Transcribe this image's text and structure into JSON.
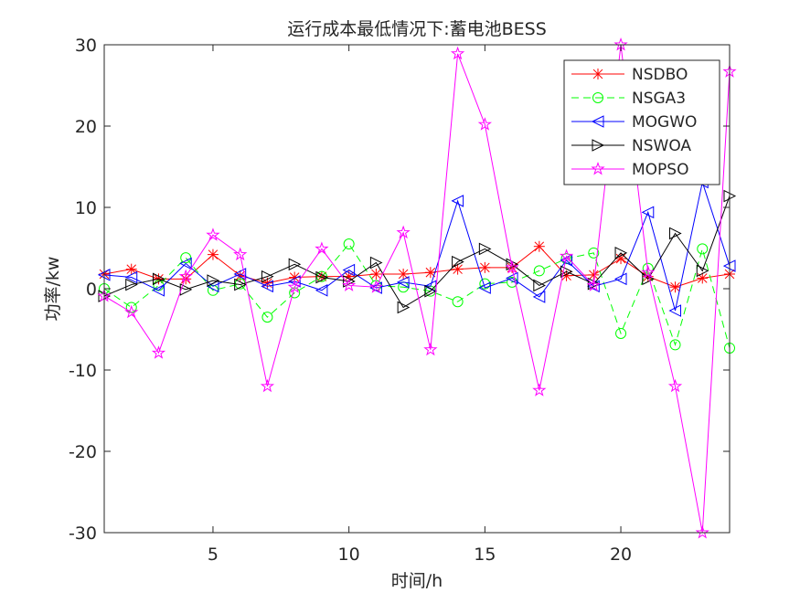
{
  "chart_data": {
    "type": "line",
    "title": "运行成本最低情况下:蓄电池BESS",
    "xlabel": "时间/h",
    "ylabel": "功率/kw",
    "xlim": [
      1,
      24
    ],
    "ylim": [
      -30,
      30
    ],
    "xticks": [
      5,
      10,
      15,
      20
    ],
    "yticks": [
      -30,
      -20,
      -10,
      0,
      10,
      20,
      30
    ],
    "grid": false,
    "legend_position": "top-right",
    "x": [
      1,
      2,
      3,
      4,
      5,
      6,
      7,
      8,
      9,
      10,
      11,
      12,
      13,
      14,
      15,
      16,
      17,
      18,
      19,
      20,
      21,
      22,
      23,
      24
    ],
    "series": [
      {
        "name": "NSDBO",
        "color": "#ff0000",
        "marker": "asterisk",
        "dash": "solid",
        "values": [
          1.8,
          2.4,
          1.2,
          1.2,
          4.2,
          1.6,
          0.7,
          1.4,
          1.5,
          1.5,
          1.8,
          1.8,
          2.0,
          2.4,
          2.6,
          2.6,
          5.2,
          1.6,
          1.7,
          3.7,
          1.5,
          0.2,
          1.3,
          1.8
        ]
      },
      {
        "name": "NSGA3",
        "color": "#00ff00",
        "marker": "circle",
        "dash": "dashed",
        "values": [
          0.0,
          -2.3,
          0.4,
          3.8,
          -0.2,
          0.6,
          -3.5,
          -0.5,
          1.5,
          5.5,
          0.4,
          0.2,
          -0.3,
          -1.6,
          0.6,
          0.8,
          2.2,
          3.7,
          4.4,
          -5.5,
          2.5,
          -6.9,
          4.9,
          -7.3
        ]
      },
      {
        "name": "MOGWO",
        "color": "#0000ff",
        "marker": "triangle-left",
        "dash": "solid",
        "values": [
          1.7,
          1.4,
          -0.2,
          3.1,
          0.3,
          1.8,
          0.3,
          0.9,
          -0.2,
          2.3,
          0.1,
          0.8,
          0.3,
          10.8,
          0.1,
          1.3,
          -1.0,
          3.5,
          0.3,
          1.2,
          9.4,
          -2.7,
          13.1,
          2.8
        ]
      },
      {
        "name": "NSWOA",
        "color": "#000000",
        "marker": "triangle-right",
        "dash": "solid",
        "values": [
          -0.9,
          0.5,
          1.2,
          -0.1,
          1.0,
          0.5,
          1.5,
          3.0,
          1.4,
          0.9,
          3.2,
          -2.3,
          -0.3,
          3.3,
          4.9,
          3.0,
          0.4,
          2.1,
          0.6,
          4.4,
          1.2,
          6.8,
          2.2,
          11.4
        ]
      },
      {
        "name": "MOPSO",
        "color": "#ff00ff",
        "marker": "pentagram",
        "dash": "solid",
        "values": [
          -0.9,
          -2.9,
          -7.9,
          1.5,
          6.6,
          4.2,
          -12.0,
          0.2,
          4.9,
          0.4,
          0.2,
          6.9,
          -7.5,
          28.9,
          20.2,
          2.6,
          -12.5,
          4.0,
          0.4,
          30.0,
          2.0,
          -12.0,
          -30.0,
          26.7
        ]
      }
    ]
  }
}
